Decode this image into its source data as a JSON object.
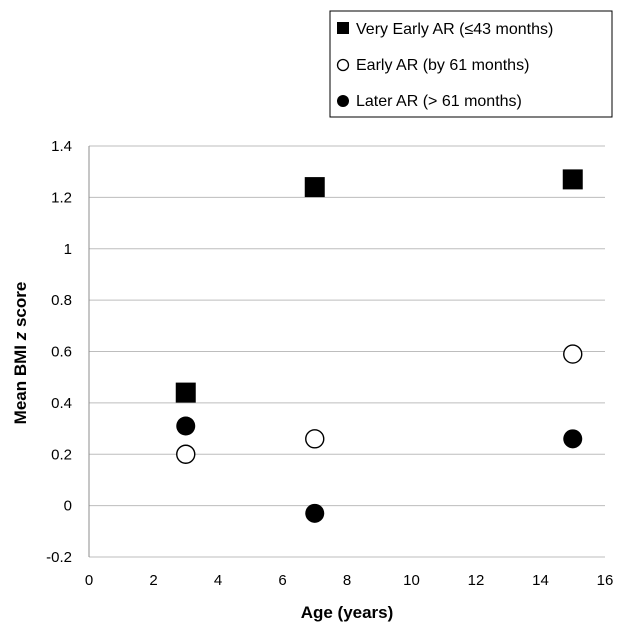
{
  "chart_data": {
    "type": "scatter",
    "title": "",
    "xlabel": "Age (years)",
    "ylabel_main": "Mean BMI ",
    "ylabel_italic": "z",
    "ylabel_end": " score",
    "xlim": [
      0,
      16
    ],
    "ylim": [
      -0.2,
      1.4
    ],
    "x_ticks": [
      0,
      2,
      4,
      6,
      8,
      10,
      12,
      14,
      16
    ],
    "y_ticks": [
      -0.2,
      0,
      0.2,
      0.4,
      0.6,
      0.8,
      1,
      1.2,
      1.4
    ],
    "y_tick_labels": [
      "-0.2",
      "0",
      "0.2",
      "0.4",
      "0.6",
      "0.8",
      "1",
      "1.2",
      "1.4"
    ],
    "grid": "horizontal",
    "legend_position": "top-right",
    "series": [
      {
        "name": "Very Early AR (≤43 months)",
        "marker": "filled-square",
        "points": [
          {
            "x": 3,
            "y": 0.44
          },
          {
            "x": 7,
            "y": 1.24
          },
          {
            "x": 15,
            "y": 1.27
          }
        ]
      },
      {
        "name": "Early AR (by 61 months)",
        "marker": "open-circle",
        "points": [
          {
            "x": 3,
            "y": 0.2
          },
          {
            "x": 7,
            "y": 0.26
          },
          {
            "x": 15,
            "y": 0.59
          }
        ]
      },
      {
        "name": "Later AR (> 61 months)",
        "marker": "filled-circle",
        "points": [
          {
            "x": 3,
            "y": 0.31
          },
          {
            "x": 7,
            "y": -0.03
          },
          {
            "x": 15,
            "y": 0.26
          }
        ]
      }
    ]
  }
}
